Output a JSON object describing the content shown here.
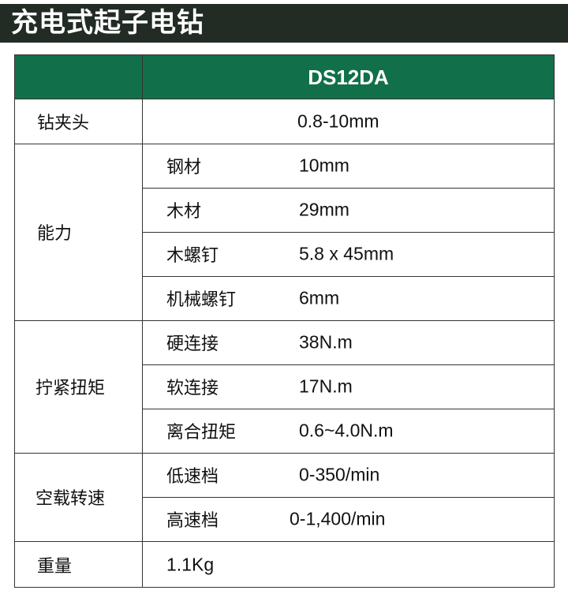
{
  "title": "充电式起子电钻",
  "model": "DS12DA",
  "chuck": {
    "label": "钻夹头",
    "value": "0.8-10mm"
  },
  "capacity": {
    "label": "能力",
    "items": [
      {
        "label": "钢材",
        "value": "10mm"
      },
      {
        "label": "木材",
        "value": "29mm"
      },
      {
        "label": "木螺钉",
        "value": "5.8 x 45mm"
      },
      {
        "label": "机械螺钉",
        "value": "6mm"
      }
    ]
  },
  "torque": {
    "label": "拧紧扭矩",
    "items": [
      {
        "label": "硬连接",
        "value": "38N.m"
      },
      {
        "label": "软连接",
        "value": "17N.m"
      },
      {
        "label": "离合扭矩",
        "value": "0.6~4.0N.m"
      }
    ]
  },
  "speed": {
    "label": "空载转速",
    "items": [
      {
        "label": "低速档",
        "value": "0-350/min"
      },
      {
        "label": "高速档",
        "value": "0-1,400/min"
      }
    ]
  },
  "weight": {
    "label": "重量",
    "value": "1.1Kg"
  },
  "colors": {
    "header_green": "#11704a",
    "title_bg": "#232b25"
  }
}
